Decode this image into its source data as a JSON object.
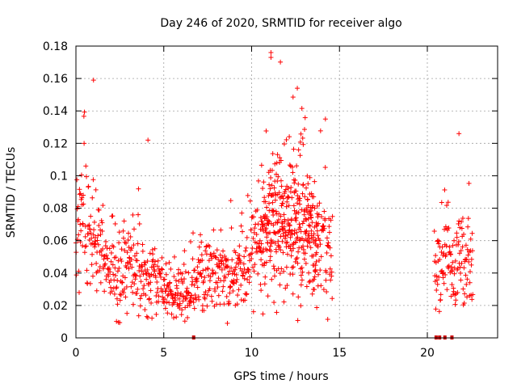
{
  "chart_data": {
    "type": "scatter",
    "title": "Day 246 of 2020, SRMTID for receiver algo",
    "xlabel": "GPS time / hours",
    "ylabel": "SRMTID / TECUs",
    "xlim": [
      0,
      24
    ],
    "ylim": [
      0,
      0.18
    ],
    "grid": true,
    "marker": "+",
    "colors": {
      "points": "#ff0000",
      "gaps": "#cc0000",
      "grid": "#a0a0a0"
    },
    "xticks": [
      0,
      5,
      10,
      15,
      20
    ],
    "xtick_labels": [
      "0",
      "5",
      "10",
      "15",
      "20"
    ],
    "yticks": [
      0,
      0.02,
      0.04,
      0.06,
      0.08,
      0.1,
      0.12,
      0.14,
      0.16,
      0.18
    ],
    "ytick_labels": [
      "0",
      "0.02",
      "0.04",
      "0.06",
      "0.08",
      "0.1",
      "0.12",
      "0.14",
      "0.16",
      "0.18"
    ],
    "data_gap_marks": [
      6.7,
      20.5,
      20.7,
      21.0,
      21.4
    ],
    "envelope_hours": [
      0,
      0.5,
      1,
      1.5,
      2,
      2.5,
      3,
      3.5,
      4,
      4.5,
      5,
      5.5,
      6,
      6.5,
      7,
      7.5,
      8,
      8.5,
      9,
      9.5,
      10,
      10.5,
      11,
      11.5,
      12,
      12.5,
      13,
      13.5,
      14,
      14.5
    ],
    "envelope_typical": [
      0.06,
      0.07,
      0.062,
      0.05,
      0.045,
      0.042,
      0.045,
      0.042,
      0.038,
      0.036,
      0.03,
      0.027,
      0.026,
      0.028,
      0.033,
      0.036,
      0.04,
      0.038,
      0.037,
      0.04,
      0.048,
      0.06,
      0.072,
      0.075,
      0.072,
      0.075,
      0.07,
      0.062,
      0.056,
      0.055
    ],
    "sampling_interval_hours": 0.0167,
    "late_segment": {
      "x_range": [
        20.4,
        22.6
      ],
      "typical": 0.045
    },
    "notable_points": [
      {
        "x": 1.0,
        "y": 0.159
      },
      {
        "x": 11.1,
        "y": 0.176
      },
      {
        "x": 11.1,
        "y": 0.173
      },
      {
        "x": 12.6,
        "y": 0.154
      },
      {
        "x": 14.2,
        "y": 0.135
      },
      {
        "x": 21.8,
        "y": 0.126
      },
      {
        "x": 4.1,
        "y": 0.122
      }
    ]
  }
}
